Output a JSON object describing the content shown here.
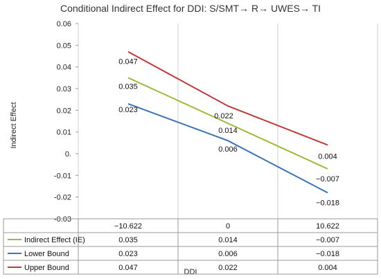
{
  "chart_data": {
    "type": "line",
    "title": "Conditional Indirect Effect for DDI: S/SMT→ R→ UWES→ TI",
    "xlabel": "DDI",
    "ylabel": "Indirect Effect",
    "categories": [
      "−10.622",
      "0",
      "10.622"
    ],
    "ylim": [
      -0.03,
      0.06
    ],
    "yticks": [
      "0.06",
      "0.05",
      "0.04",
      "0.03",
      "0.02",
      "0.01",
      "0.",
      "-0.01",
      "-0.02",
      "-0.03"
    ],
    "ytick_values": [
      0.06,
      0.05,
      0.04,
      0.03,
      0.02,
      0.01,
      0.0,
      -0.01,
      -0.02,
      -0.03
    ],
    "grid": "vertical",
    "legend": "data-table",
    "series": [
      {
        "name": "Indirect Effect (IE)",
        "color": "#9bbb3a",
        "values": [
          0.035,
          0.014,
          -0.007
        ],
        "labels": [
          "0.035",
          "0.014",
          "−0.007"
        ]
      },
      {
        "name": "Lower Bound",
        "color": "#3a73b8",
        "values": [
          0.023,
          0.006,
          -0.018
        ],
        "labels": [
          "0.023",
          "0.006",
          "−0.018"
        ]
      },
      {
        "name": "Upper Bound",
        "color": "#c0393b",
        "values": [
          0.047,
          0.022,
          0.004
        ],
        "labels": [
          "0.047",
          "0.022",
          "0.004"
        ]
      }
    ]
  }
}
